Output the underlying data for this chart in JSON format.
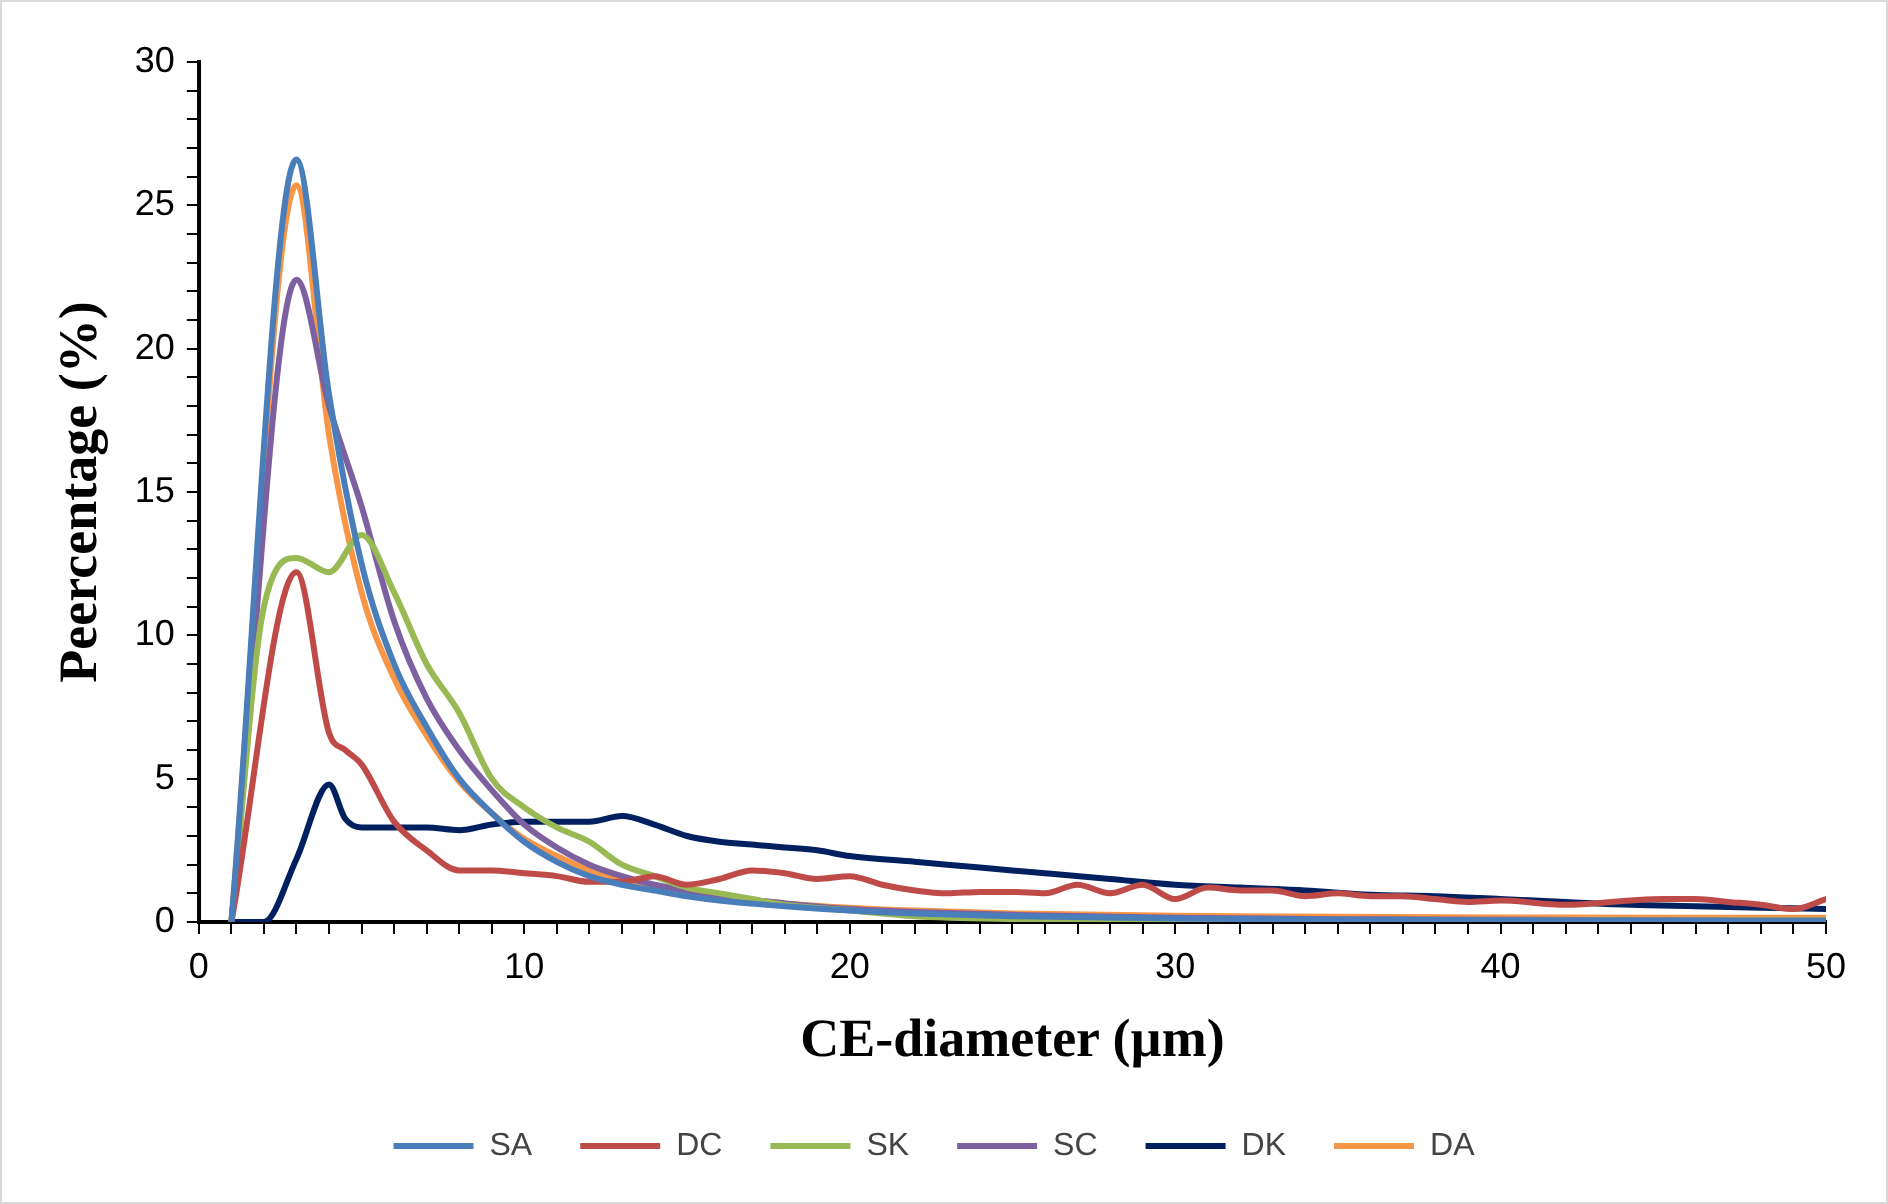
{
  "chart_data": {
    "type": "line",
    "xlabel": "CE-diameter (µm)",
    "ylabel": "Peercentage (%)",
    "xlim": [
      0,
      50
    ],
    "ylim": [
      0,
      30
    ],
    "xticks": [
      0,
      {
        "value": 1,
        "label": null
      },
      {
        "value": 2,
        "label": null
      },
      {
        "value": 3,
        "label": null
      },
      {
        "value": 4,
        "label": null
      },
      {
        "value": 5,
        "label": null
      },
      {
        "value": 6,
        "label": null
      },
      {
        "value": 7,
        "label": null
      },
      {
        "value": 8,
        "label": null
      },
      {
        "value": 9,
        "label": null
      },
      10,
      {
        "value": 11,
        "label": null
      },
      {
        "value": 12,
        "label": null
      },
      {
        "value": 13,
        "label": null
      },
      {
        "value": 14,
        "label": null
      },
      {
        "value": 15,
        "label": null
      },
      {
        "value": 16,
        "label": null
      },
      {
        "value": 17,
        "label": null
      },
      {
        "value": 18,
        "label": null
      },
      {
        "value": 19,
        "label": null
      },
      20,
      {
        "value": 21,
        "label": null
      },
      {
        "value": 22,
        "label": null
      },
      {
        "value": 23,
        "label": null
      },
      {
        "value": 24,
        "label": null
      },
      {
        "value": 25,
        "label": null
      },
      {
        "value": 26,
        "label": null
      },
      {
        "value": 27,
        "label": null
      },
      {
        "value": 28,
        "label": null
      },
      {
        "value": 29,
        "label": null
      },
      30,
      {
        "value": 31,
        "label": null
      },
      {
        "value": 32,
        "label": null
      },
      {
        "value": 33,
        "label": null
      },
      {
        "value": 34,
        "label": null
      },
      {
        "value": 35,
        "label": null
      },
      {
        "value": 36,
        "label": null
      },
      {
        "value": 37,
        "label": null
      },
      {
        "value": 38,
        "label": null
      },
      {
        "value": 39,
        "label": null
      },
      40,
      {
        "value": 41,
        "label": null
      },
      {
        "value": 42,
        "label": null
      },
      {
        "value": 43,
        "label": null
      },
      {
        "value": 44,
        "label": null
      },
      {
        "value": 45,
        "label": null
      },
      {
        "value": 46,
        "label": null
      },
      {
        "value": 47,
        "label": null
      },
      {
        "value": 48,
        "label": null
      },
      {
        "value": 49,
        "label": null
      },
      50
    ],
    "yticks": [
      0,
      {
        "value": 1,
        "label": null
      },
      {
        "value": 2,
        "label": null
      },
      {
        "value": 3,
        "label": null
      },
      {
        "value": 4,
        "label": null
      },
      5,
      {
        "value": 6,
        "label": null
      },
      {
        "value": 7,
        "label": null
      },
      {
        "value": 8,
        "label": null
      },
      {
        "value": 9,
        "label": null
      },
      10,
      {
        "value": 11,
        "label": null
      },
      {
        "value": 12,
        "label": null
      },
      {
        "value": 13,
        "label": null
      },
      {
        "value": 14,
        "label": null
      },
      15,
      {
        "value": 16,
        "label": null
      },
      {
        "value": 17,
        "label": null
      },
      {
        "value": 18,
        "label": null
      },
      {
        "value": 19,
        "label": null
      },
      20,
      {
        "value": 21,
        "label": null
      },
      {
        "value": 22,
        "label": null
      },
      {
        "value": 23,
        "label": null
      },
      {
        "value": 24,
        "label": null
      },
      25,
      {
        "value": 26,
        "label": null
      },
      {
        "value": 27,
        "label": null
      },
      {
        "value": 28,
        "label": null
      },
      {
        "value": 29,
        "label": null
      },
      30
    ],
    "grid": false,
    "legend": "bottom",
    "marker": "none",
    "line_style": "solid",
    "series": [
      {
        "name": "SA",
        "color": "#4a7ebb",
        "x": [
          1,
          3,
          4,
          5,
          6,
          7,
          8,
          9,
          10,
          11,
          12,
          13,
          14,
          15,
          16,
          18,
          20,
          22,
          25,
          30,
          35,
          40,
          45,
          50
        ],
        "values": [
          0,
          26.6,
          18.4,
          12.5,
          9.0,
          6.8,
          5.0,
          3.8,
          2.8,
          2.1,
          1.6,
          1.3,
          1.1,
          0.9,
          0.75,
          0.55,
          0.4,
          0.3,
          0.2,
          0.12,
          0.08,
          0.06,
          0.05,
          0.04
        ]
      },
      {
        "name": "DC",
        "color": "#be4b48",
        "x": [
          1,
          3,
          4,
          4.5,
          5,
          6,
          7,
          8,
          9,
          10,
          11,
          12,
          13,
          14,
          15,
          16,
          17,
          18,
          19,
          20,
          21,
          22,
          23,
          24,
          25,
          26,
          27,
          28,
          29,
          30,
          31,
          32,
          33,
          34,
          35,
          36,
          37,
          38,
          39,
          40,
          42,
          44,
          45,
          46,
          47,
          48,
          49,
          50
        ],
        "values": [
          0,
          12.2,
          6.6,
          6.0,
          5.5,
          3.5,
          2.5,
          1.8,
          1.8,
          1.7,
          1.6,
          1.4,
          1.4,
          1.6,
          1.3,
          1.5,
          1.8,
          1.7,
          1.5,
          1.6,
          1.3,
          1.1,
          1.0,
          1.05,
          1.05,
          1.0,
          1.3,
          1.0,
          1.3,
          0.8,
          1.2,
          1.1,
          1.1,
          0.9,
          1.0,
          0.9,
          0.9,
          0.8,
          0.7,
          0.75,
          0.6,
          0.75,
          0.8,
          0.8,
          0.7,
          0.6,
          0.45,
          0.8
        ]
      },
      {
        "name": "SK",
        "color": "#98b954",
        "x": [
          1,
          2,
          3,
          4,
          5,
          6,
          7,
          8,
          9,
          10,
          11,
          12,
          13,
          14,
          15,
          16,
          17,
          18,
          20,
          22,
          25,
          30,
          40,
          50
        ],
        "values": [
          0,
          11,
          12.7,
          12.2,
          13.5,
          11.5,
          9,
          7.3,
          5,
          4,
          3.3,
          2.8,
          2,
          1.6,
          1.2,
          1,
          0.8,
          0.6,
          0.4,
          0.2,
          0.1,
          0.05,
          0.05,
          0.05
        ]
      },
      {
        "name": "SC",
        "color": "#7d60a0",
        "x": [
          1,
          3,
          4,
          5,
          6,
          7,
          8,
          9,
          10,
          11,
          12,
          13,
          14,
          15,
          16,
          18,
          20,
          22,
          25,
          30,
          35,
          40,
          45,
          50
        ],
        "values": [
          0,
          22.4,
          18,
          14.5,
          10.5,
          7.8,
          6,
          4.6,
          3.4,
          2.6,
          2,
          1.6,
          1.3,
          1.1,
          0.9,
          0.65,
          0.45,
          0.35,
          0.25,
          0.15,
          0.1,
          0.08,
          0.06,
          0.05
        ]
      },
      {
        "name": "DK",
        "color": "#002060",
        "x": [
          1,
          2,
          3,
          4,
          4.5,
          5,
          6,
          7,
          8,
          9,
          10,
          12,
          13,
          14,
          15,
          16,
          17,
          18,
          19,
          20,
          22,
          24,
          26,
          28,
          30,
          32,
          34,
          36,
          38,
          40,
          42,
          44,
          46,
          48,
          50
        ],
        "values": [
          0,
          0,
          2.2,
          4.8,
          3.6,
          3.3,
          3.3,
          3.3,
          3.2,
          3.4,
          3.5,
          3.5,
          3.7,
          3.4,
          3,
          2.8,
          2.7,
          2.6,
          2.5,
          2.3,
          2.1,
          1.9,
          1.7,
          1.5,
          1.3,
          1.2,
          1.1,
          0.95,
          0.9,
          0.8,
          0.7,
          0.6,
          0.55,
          0.5,
          0.45
        ]
      },
      {
        "name": "DA",
        "color": "#f79646",
        "x": [
          1,
          3,
          4,
          5,
          6,
          7,
          8,
          9,
          10,
          11,
          12,
          13,
          14,
          15,
          16,
          18,
          20,
          22,
          25,
          30,
          35,
          40,
          45,
          50
        ],
        "values": [
          0,
          25.7,
          17,
          11.5,
          8.5,
          6.5,
          4.9,
          3.8,
          2.9,
          2.3,
          1.8,
          1.5,
          1.25,
          1.05,
          0.9,
          0.65,
          0.5,
          0.4,
          0.3,
          0.22,
          0.18,
          0.16,
          0.15,
          0.15
        ]
      }
    ]
  }
}
